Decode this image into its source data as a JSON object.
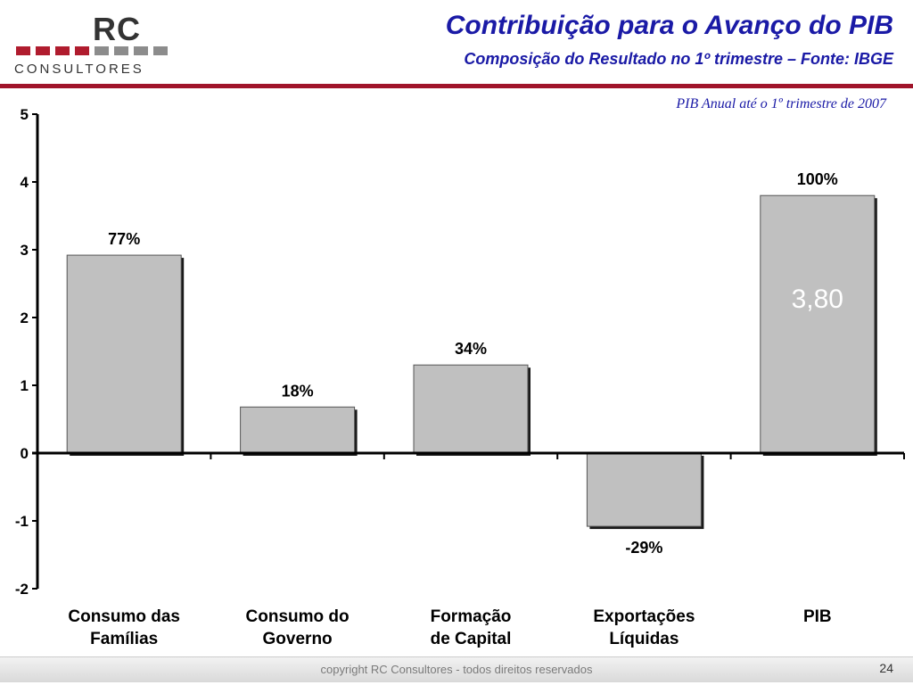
{
  "logo": {
    "mark": "RC",
    "sub": "CONSULTORES",
    "accent": "#b01c2e"
  },
  "header": {
    "title": "Contribuição para o Avanço do PIB",
    "subtitle": "Composição do Resultado no 1º trimestre – Fonte: IBGE"
  },
  "annotation": "PIB Anual até o 1º trimestre de 2007",
  "colors": {
    "title": "#1a1aa6",
    "rule": "#a0142a",
    "bar": "#c0c0c0",
    "bar_shadow": "#1a1a1a"
  },
  "chart_data": {
    "type": "bar",
    "categories": [
      [
        "Consumo das",
        "Famílias"
      ],
      [
        "Consumo do",
        "Governo"
      ],
      [
        "Formação",
        "de Capital"
      ],
      [
        "Exportações",
        "Líquidas"
      ],
      [
        "PIB"
      ]
    ],
    "values": [
      2.92,
      0.68,
      1.3,
      -1.08,
      3.8
    ],
    "data_labels": [
      "77%",
      "18%",
      "34%",
      "-29%",
      "100%"
    ],
    "inner_label": {
      "index": 4,
      "text": "3,80"
    },
    "ylim": [
      -2,
      5
    ],
    "yticks": [
      "5",
      "4",
      "3",
      "2",
      "1",
      "0",
      "-1",
      "-2"
    ],
    "grid": false,
    "legend": "none"
  },
  "footer": {
    "copyright": "copyright RC Consultores - todos direitos reservados",
    "page": "24"
  }
}
